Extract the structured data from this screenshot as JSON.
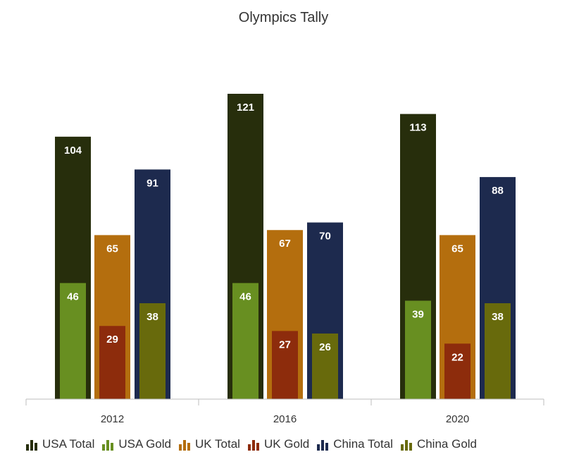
{
  "chart_data": {
    "type": "bar",
    "title": "Olympics Tally",
    "categories": [
      "2012",
      "2016",
      "2020"
    ],
    "series": [
      {
        "name": "USA Total",
        "values": [
          104,
          121,
          113
        ],
        "color": "#272E0C"
      },
      {
        "name": "USA Gold",
        "values": [
          46,
          46,
          39
        ],
        "color": "#688F21"
      },
      {
        "name": "UK Total",
        "values": [
          65,
          67,
          65
        ],
        "color": "#B46E0E"
      },
      {
        "name": "UK Gold",
        "values": [
          29,
          27,
          22
        ],
        "color": "#8D2C0C"
      },
      {
        "name": "China Total",
        "values": [
          91,
          70,
          88
        ],
        "color": "#1D2A4E"
      },
      {
        "name": "China Gold",
        "values": [
          38,
          26,
          38
        ],
        "color": "#686A0C"
      }
    ],
    "ylim": [
      0,
      121
    ],
    "grid": false,
    "legend_position": "bottom",
    "data_labels": true,
    "overlapping_gold_bars": true
  }
}
